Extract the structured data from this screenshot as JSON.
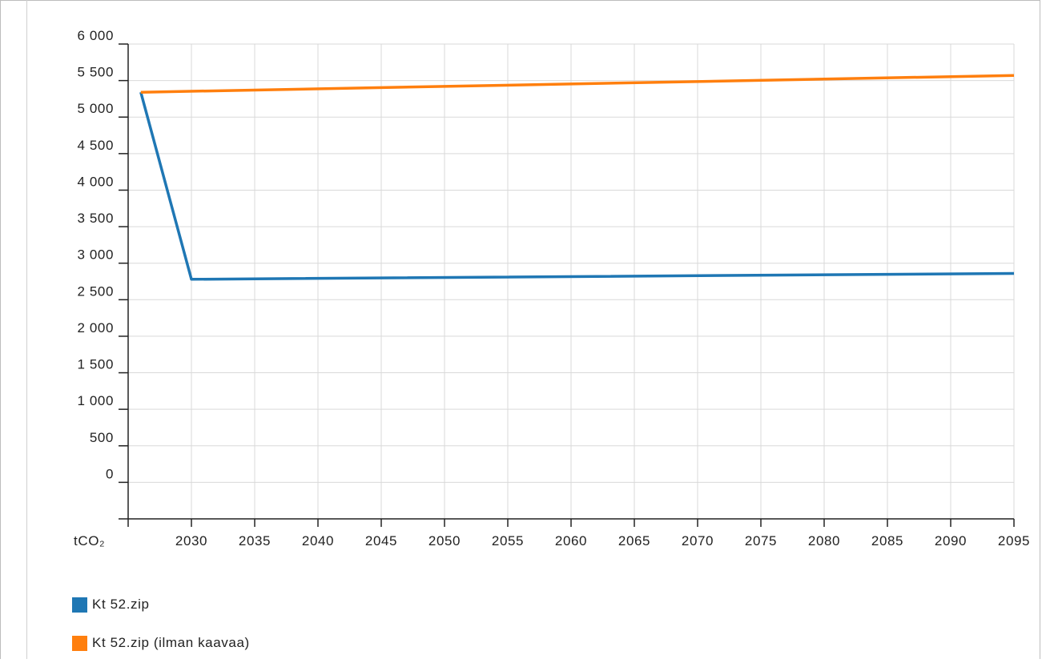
{
  "chart_data": {
    "type": "line",
    "ylabel": "tCO₂",
    "ylim": [
      -500,
      6000
    ],
    "y_ticks": [
      0,
      500,
      1000,
      1500,
      2000,
      2500,
      3000,
      3500,
      4000,
      4500,
      5000,
      5500,
      6000
    ],
    "y_tick_labels": [
      "0",
      "500",
      "1 000",
      "1 500",
      "2 000",
      "2 500",
      "3 000",
      "3 500",
      "4 000",
      "4 500",
      "5 000",
      "5 500",
      "6 000"
    ],
    "xlim": [
      2025,
      2095
    ],
    "x_ticks": [
      2030,
      2035,
      2040,
      2045,
      2050,
      2055,
      2060,
      2065,
      2070,
      2075,
      2080,
      2085,
      2090,
      2095
    ],
    "x_tick_labels": [
      "2030",
      "2035",
      "2040",
      "2045",
      "2050",
      "2055",
      "2060",
      "2065",
      "2070",
      "2075",
      "2080",
      "2085",
      "2090",
      "2095"
    ],
    "grid": true,
    "legend_position": "bottom-left",
    "series": [
      {
        "name": "Kt 52.zip",
        "color": "#1f77b4",
        "x": [
          2026,
          2030,
          2095
        ],
        "y": [
          5340,
          2780,
          2860
        ]
      },
      {
        "name": "Kt 52.zip (ilman kaavaa)",
        "color": "#ff7f0e",
        "x": [
          2026,
          2095
        ],
        "y": [
          5340,
          5570
        ]
      }
    ]
  }
}
